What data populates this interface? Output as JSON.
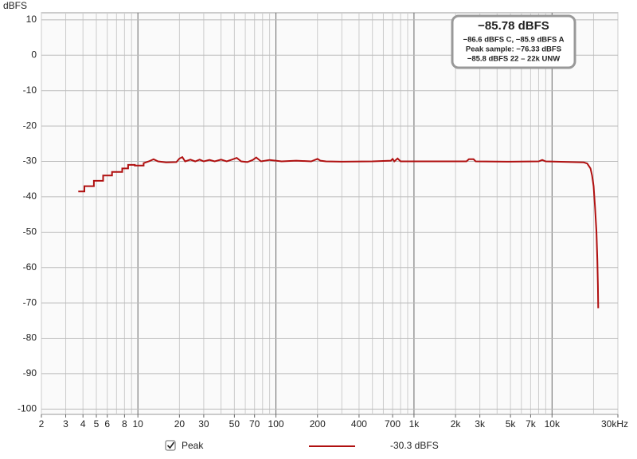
{
  "chart_data": {
    "type": "line",
    "ylabel": "dBFS",
    "xscale": "log",
    "xlim": [
      2,
      30000
    ],
    "ylim": [
      -101.5,
      12
    ],
    "xticks": [
      2,
      3,
      4,
      5,
      6,
      8,
      10,
      20,
      30,
      50,
      70,
      100,
      200,
      400,
      700,
      {
        "value": 1000,
        "label": "1k"
      },
      {
        "value": 2000,
        "label": "2k"
      },
      {
        "value": 3000,
        "label": "3k"
      },
      {
        "value": 5000,
        "label": "5k"
      },
      {
        "value": 7000,
        "label": "7k"
      },
      {
        "value": 10000,
        "label": "10k"
      },
      {
        "value": 30000,
        "label": "30kHz"
      }
    ],
    "x_major_grid": [
      10,
      100,
      1000,
      10000
    ],
    "x_minor_grid": [
      2,
      3,
      4,
      5,
      6,
      7,
      8,
      9,
      20,
      30,
      40,
      50,
      60,
      70,
      80,
      90,
      200,
      300,
      400,
      500,
      600,
      700,
      800,
      900,
      2000,
      3000,
      4000,
      5000,
      6000,
      7000,
      8000,
      9000,
      20000,
      30000
    ],
    "yticks": [
      10,
      0,
      -10,
      -20,
      -30,
      -40,
      -50,
      -60,
      -70,
      -80,
      -90,
      -100
    ],
    "grid": true,
    "x": [
      3.7,
      4.1,
      4.1,
      4.8,
      4.8,
      5.6,
      5.6,
      6.5,
      6.5,
      7.7,
      7.7,
      8.5,
      8.5,
      9.5,
      9.5,
      11,
      11,
      12,
      13,
      14,
      16,
      19,
      20,
      21,
      22,
      24,
      26,
      28,
      30,
      33,
      36,
      40,
      44,
      48,
      52,
      56,
      62,
      68,
      72,
      78,
      90,
      110,
      140,
      180,
      200,
      210,
      230,
      300,
      500,
      680,
      700,
      720,
      760,
      800,
      1500,
      2400,
      2500,
      2700,
      2800,
      5000,
      8000,
      8500,
      9000,
      14000,
      17000,
      18000,
      19000,
      19500,
      20000,
      20500,
      21000,
      21300,
      21500,
      21600
    ],
    "series": [
      {
        "name": "Peak",
        "color": "#b01010",
        "legend_value": "-30.3 dBFS",
        "values": [
          -38.5,
          -38.5,
          -37,
          -37,
          -35.5,
          -35.5,
          -34,
          -34,
          -33,
          -33,
          -32,
          -32,
          -31,
          -31,
          -31.2,
          -31.2,
          -30.5,
          -30,
          -29.4,
          -30,
          -30.3,
          -30.2,
          -29.2,
          -28.8,
          -30,
          -29.5,
          -30,
          -29.5,
          -30,
          -29.6,
          -30,
          -29.5,
          -30,
          -29.5,
          -29,
          -30,
          -30.2,
          -29.6,
          -28.9,
          -30,
          -29.6,
          -30,
          -29.8,
          -30,
          -29.3,
          -29.8,
          -30,
          -30.1,
          -30,
          -29.8,
          -29.3,
          -30,
          -29.2,
          -30,
          -30,
          -30,
          -29.4,
          -29.4,
          -30,
          -30.1,
          -30,
          -29.6,
          -30,
          -30.2,
          -30.3,
          -30.6,
          -32,
          -34,
          -37,
          -43,
          -50,
          -58,
          -65,
          -71.5
        ]
      }
    ],
    "readout": {
      "main": "−85.78 dBFS",
      "lines": [
        "−86.6 dBFS C, −85.9 dBFS A",
        "Peak sample: −76.33 dBFS",
        "−85.8 dBFS 22 – 22k UNW"
      ]
    }
  }
}
